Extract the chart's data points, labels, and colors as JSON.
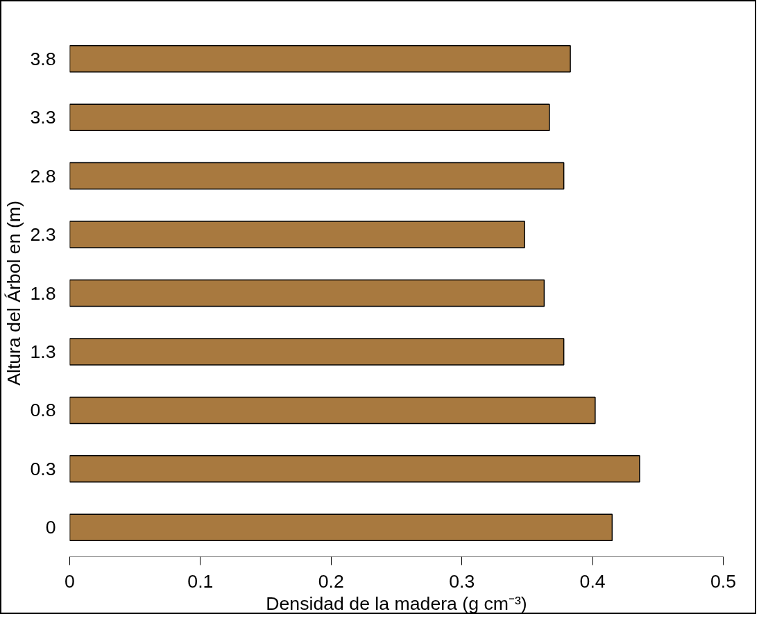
{
  "chart_data": {
    "type": "bar",
    "orientation": "horizontal",
    "xlabel": "Densidad de la madera (g cm⁻³)",
    "ylabel": "Altura del Árbol en (m)",
    "categories": [
      "3.8",
      "3.3",
      "2.8",
      "2.3",
      "1.8",
      "1.3",
      "0.8",
      "0.3",
      "0"
    ],
    "values": [
      0.383,
      0.367,
      0.378,
      0.348,
      0.363,
      0.378,
      0.402,
      0.436,
      0.415
    ],
    "color": "#a8793f",
    "xlim": [
      0,
      0.5
    ],
    "xticks": [
      0,
      0.1,
      0.2,
      0.3,
      0.4,
      0.5
    ],
    "grid": false
  }
}
